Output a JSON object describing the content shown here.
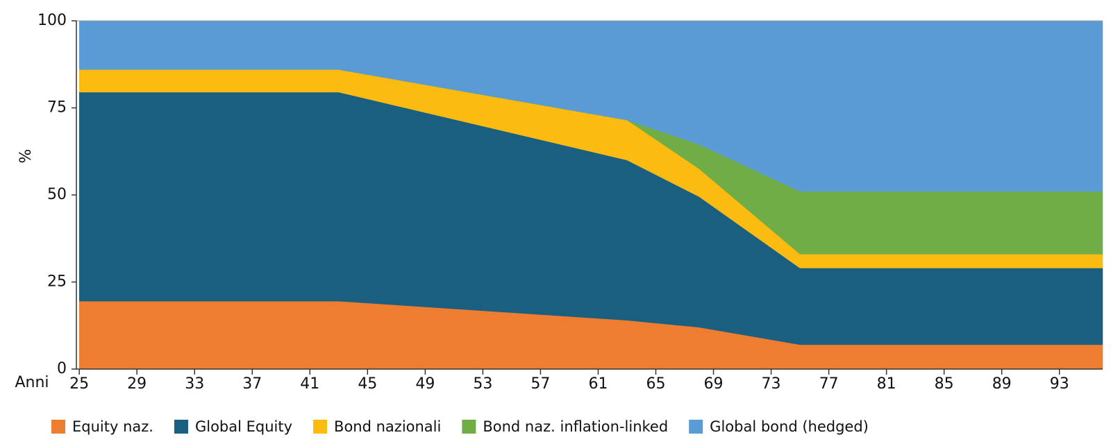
{
  "chart_data": {
    "type": "stacked_area",
    "x_label": "Anni",
    "y_label": "%",
    "x": [
      25,
      43,
      63,
      68,
      75,
      96
    ],
    "xlim": [
      24.8,
      96
    ],
    "xticks": [
      25,
      29,
      33,
      37,
      41,
      45,
      49,
      53,
      57,
      61,
      65,
      69,
      73,
      77,
      81,
      85,
      89,
      93
    ],
    "ylim": [
      0,
      100
    ],
    "yticks": [
      0,
      25,
      50,
      75,
      100
    ],
    "series": [
      {
        "name": "Equity naz.",
        "color": "#ed7d31",
        "values": [
          19.5,
          19.5,
          14,
          12,
          7,
          7
        ]
      },
      {
        "name": "Global Equity",
        "color": "#1b5f80",
        "values": [
          60,
          60,
          46,
          37.5,
          22,
          22
        ]
      },
      {
        "name": "Bond nazionali",
        "color": "#fbbb10",
        "values": [
          6.5,
          6.5,
          11.5,
          8,
          4,
          4
        ]
      },
      {
        "name": "Bond naz. inflation-linked",
        "color": "#70ad47",
        "values": [
          0,
          0,
          0,
          7,
          18,
          18
        ]
      },
      {
        "name": "Global bond (hedged)",
        "color": "#5b9bd5",
        "values": [
          14,
          14,
          28.5,
          35.5,
          49,
          49
        ]
      }
    ]
  }
}
